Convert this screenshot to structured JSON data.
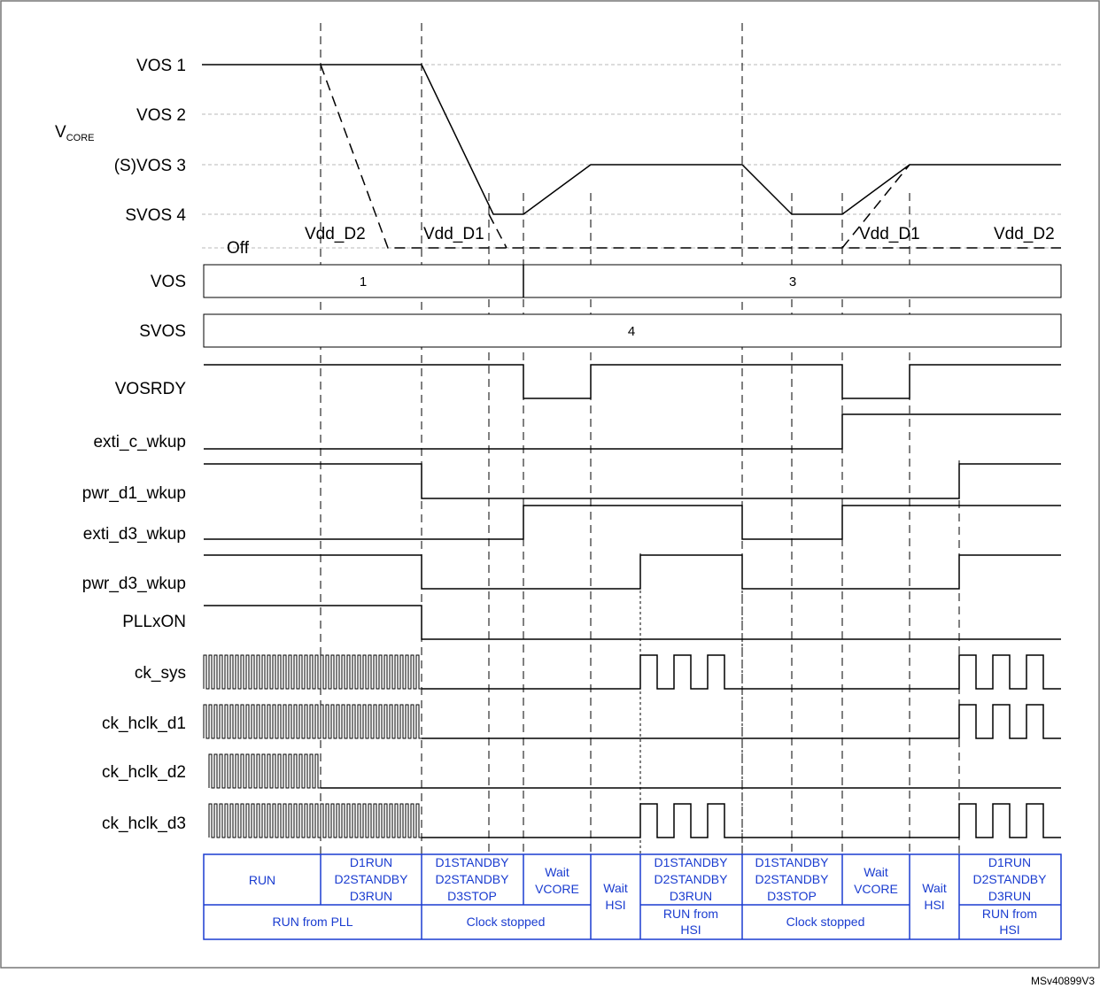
{
  "vcore": {
    "axis_label": "V",
    "axis_sub": "CORE",
    "levels": [
      "VOS 1",
      "VOS 2",
      "(S)VOS 3",
      "SVOS 4",
      "Off"
    ],
    "supply_labels": [
      "Vdd_D2",
      "Vdd_D1",
      "Vdd_D1",
      "Vdd_D2"
    ]
  },
  "signals": {
    "vos": {
      "name": "VOS",
      "values": [
        "1",
        "3"
      ]
    },
    "svos": {
      "name": "SVOS",
      "values": [
        "4"
      ]
    },
    "vosrdy": "VOSRDY",
    "exti_c_wkup": "exti_c_wkup",
    "pwr_d1_wkup": "pwr_d1_wkup",
    "exti_d3_wkup": "exti_d3_wkup",
    "pwr_d3_wkup": "pwr_d3_wkup",
    "pllxon": "PLLxON",
    "ck_sys": "ck_sys",
    "ck_hclk_d1": "ck_hclk_d1",
    "ck_hclk_d2": "ck_hclk_d2",
    "ck_hclk_d3": "ck_hclk_d3"
  },
  "table": {
    "row1": [
      [
        "RUN"
      ],
      [
        "D1RUN",
        "D2STANDBY",
        "D3RUN"
      ],
      [
        "D1STANDBY",
        "D2STANDBY",
        "D3STOP"
      ],
      [
        "Wait",
        "VCORE"
      ],
      [
        "Wait",
        "HSI"
      ],
      [
        "D1STANDBY",
        "D2STANDBY",
        "D3RUN"
      ],
      [
        "D1STANDBY",
        "D2STANDBY",
        "D3STOP"
      ],
      [
        "Wait",
        "VCORE"
      ],
      [
        "Wait",
        "HSI"
      ],
      [
        "D1RUN",
        "D2STANDBY",
        "D3RUN"
      ]
    ],
    "row2": [
      [
        "RUN from PLL"
      ],
      [
        "Clock stopped"
      ],
      [
        "RUN from",
        "HSI"
      ],
      [
        "Clock stopped"
      ],
      [
        "RUN from",
        "HSI"
      ]
    ]
  },
  "figure_ref": "MSv40899V3",
  "colors": {
    "table_text": "#1a3cd0",
    "table_border": "#1a3cd0",
    "gridline": "#b8b8b8"
  }
}
